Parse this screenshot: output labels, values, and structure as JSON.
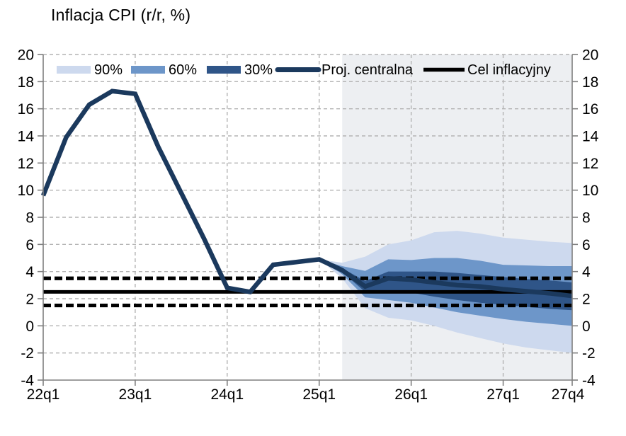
{
  "chart_data": {
    "type": "line",
    "subtype": "fan-chart",
    "title": "Inflacja CPI (r/r, %)",
    "x_quarters": [
      "22q1",
      "22q2",
      "22q3",
      "22q4",
      "23q1",
      "23q2",
      "23q3",
      "23q4",
      "24q1",
      "24q2",
      "24q3",
      "24q4",
      "25q1",
      "25q2",
      "25q3",
      "25q4",
      "26q1",
      "26q2",
      "26q3",
      "26q4",
      "27q1",
      "27q2",
      "27q3",
      "27q4"
    ],
    "x_tick_labels": [
      "22q1",
      "23q1",
      "24q1",
      "25q1",
      "26q1",
      "27q1",
      "27q4"
    ],
    "x_tick_indices": [
      0,
      4,
      8,
      12,
      16,
      20,
      23
    ],
    "y_ticks": [
      -4,
      -2,
      0,
      2,
      4,
      6,
      8,
      10,
      12,
      14,
      16,
      18,
      20
    ],
    "ylim": [
      -4,
      20
    ],
    "grid": true,
    "series": {
      "central": {
        "name": "Proj. centralna",
        "values": [
          9.6,
          13.9,
          16.3,
          17.3,
          17.1,
          13.2,
          9.8,
          6.4,
          2.8,
          2.5,
          4.5,
          4.7,
          4.9,
          4.1,
          2.9,
          3.5,
          3.4,
          3.2,
          3.0,
          2.9,
          2.7,
          2.55,
          2.4,
          2.2
        ]
      },
      "fan_start_index": 12,
      "projection_start_index": 13,
      "band_90": {
        "name": "90%",
        "upper": [
          4.9,
          4.65,
          5.1,
          6.0,
          6.3,
          6.9,
          7.0,
          6.8,
          6.5,
          6.35,
          6.2,
          6.1
        ],
        "lower": [
          4.9,
          3.5,
          1.3,
          0.6,
          0.4,
          0.0,
          -0.5,
          -0.9,
          -1.3,
          -1.6,
          -1.8,
          -2.0
        ]
      },
      "band_60": {
        "name": "60%",
        "upper": [
          4.9,
          4.4,
          4.05,
          4.9,
          4.85,
          5.0,
          5.0,
          4.8,
          4.5,
          4.45,
          4.4,
          4.4
        ],
        "lower": [
          4.9,
          3.8,
          2.1,
          1.9,
          1.7,
          1.35,
          1.0,
          0.75,
          0.5,
          0.3,
          0.15,
          0.0
        ]
      },
      "band_30": {
        "name": "30%",
        "upper": [
          4.9,
          4.25,
          3.3,
          4.0,
          4.0,
          4.0,
          3.9,
          3.75,
          3.6,
          3.45,
          3.35,
          3.2
        ],
        "lower": [
          4.9,
          3.95,
          2.5,
          2.6,
          2.45,
          2.15,
          1.9,
          1.7,
          1.55,
          1.4,
          1.25,
          1.15
        ]
      }
    },
    "target_lines": {
      "name": "Cel inflacyjny",
      "target": 2.5,
      "band_upper": 3.5,
      "band_lower": 1.5
    },
    "legend": [
      {
        "label": "90%",
        "swatch": "box",
        "color": "#CDD9EE"
      },
      {
        "label": "60%",
        "swatch": "box",
        "color": "#6D96C9"
      },
      {
        "label": "30%",
        "swatch": "box",
        "color": "#2F5588"
      },
      {
        "label": "Proj. centralna",
        "swatch": "line",
        "color": "#1B395D"
      },
      {
        "label": "Cel inflacyjny",
        "swatch": "line",
        "color": "#000000"
      }
    ],
    "colors": {
      "central_line": "#1B395D",
      "target_line": "#000000",
      "projection_shading": "#EDEFF2",
      "band_90": "#CDD9EE",
      "band_60": "#6D96C9",
      "band_30": "#2F5588",
      "grid": "#B3B3B3",
      "axis": "#7F7F7F",
      "text": "#000000"
    }
  }
}
